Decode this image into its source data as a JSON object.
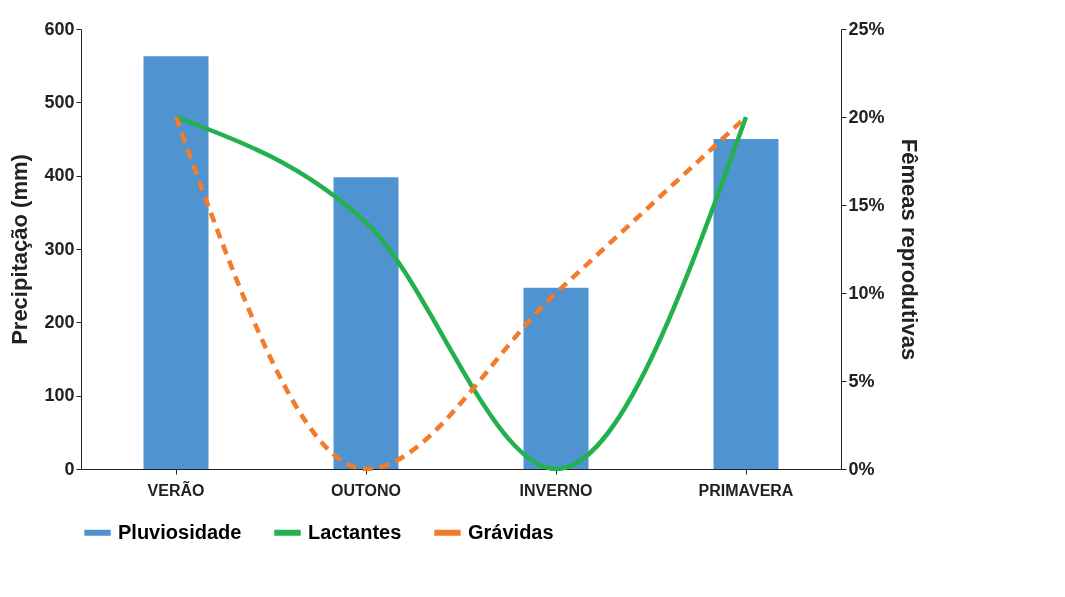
{
  "chart_data": {
    "type": "bar",
    "ylabel": "Precipitação (mm)",
    "y2label": "Fêmeas reprodutivas",
    "categories": [
      "VERÃO",
      "OUTONO",
      "INVERNO",
      "PRIMAVERA"
    ],
    "series": [
      {
        "name": "Pluviosidade",
        "color": "#4f93d0",
        "values": [
          563,
          398,
          247,
          450
        ]
      },
      {
        "name": "Lactantes",
        "type": "line",
        "axis": "y2",
        "color": "#22b14c",
        "line_style": "solid",
        "values": [
          20,
          14,
          0,
          20
        ]
      },
      {
        "name": "Grávidas",
        "type": "line",
        "axis": "y2",
        "color": "#f47b2a",
        "line_style": "dashed",
        "values": [
          20,
          0,
          10,
          20
        ]
      }
    ],
    "ylim": [
      0,
      600
    ],
    "yticks": [
      0,
      100,
      200,
      300,
      400,
      500,
      600
    ],
    "y2lim": [
      0,
      25
    ],
    "y2ticks": [
      {
        "value": 0,
        "label": "0%"
      },
      {
        "value": 5,
        "label": "5%"
      },
      {
        "value": 10,
        "label": "10%"
      },
      {
        "value": 15,
        "label": "15%"
      },
      {
        "value": 20,
        "label": "20%"
      },
      {
        "value": 25,
        "label": "25%"
      }
    ],
    "grid": false,
    "legend": "bottom",
    "marker": "none"
  }
}
